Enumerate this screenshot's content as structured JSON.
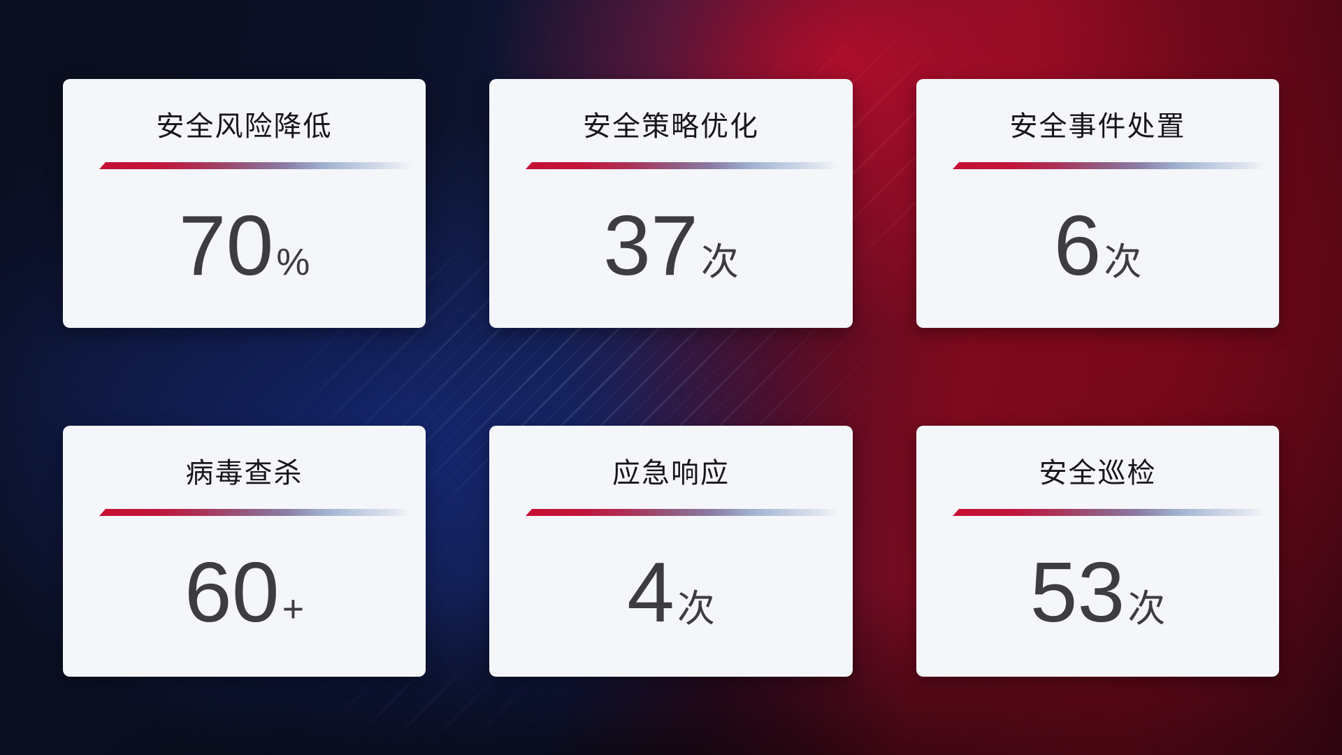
{
  "dashboard": {
    "description": "security-operations-stat-cards"
  },
  "cards": [
    {
      "title": "安全风险降低",
      "value": "70",
      "unit": "%"
    },
    {
      "title": "安全策略优化",
      "value": "37",
      "unit": "次"
    },
    {
      "title": "安全事件处置",
      "value": "6",
      "unit": "次"
    },
    {
      "title": "病毒查杀",
      "value": "60",
      "unit": "+"
    },
    {
      "title": "应急响应",
      "value": "4",
      "unit": "次"
    },
    {
      "title": "安全巡检",
      "value": "53",
      "unit": "次"
    }
  ],
  "colors": {
    "card_background": "#f4f6f9",
    "title_text": "#17171b",
    "value_text": "#3c3c41",
    "divider_start_red": "#c60f33",
    "divider_end_blue": "#d9e0ec",
    "background_blue": "#131b42",
    "background_red": "#7c0c22"
  }
}
